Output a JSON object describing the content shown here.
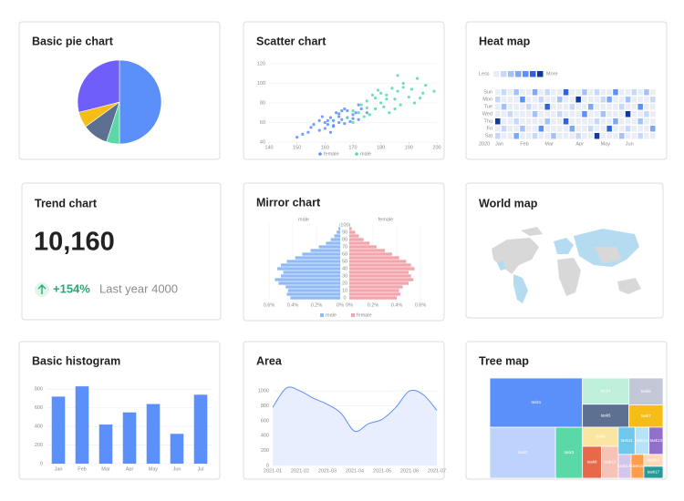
{
  "chart_data": [
    {
      "type": "pie",
      "title": "Basic pie chart",
      "values": [
        50,
        5,
        10,
        6,
        29
      ],
      "colors": [
        "#5b8ff9",
        "#5ad8a6",
        "#5d7092",
        "#f6bd16",
        "#6f5ef9"
      ]
    },
    {
      "type": "scatter",
      "title": "Scatter chart",
      "xlim": [
        140,
        200
      ],
      "xticks": [
        140,
        150,
        160,
        170,
        180,
        190,
        200
      ],
      "ylim": [
        40,
        120
      ],
      "yticks": [
        40,
        60,
        80,
        100,
        120
      ],
      "grid": true,
      "series": [
        {
          "name": "female",
          "color": "#5b8ff9",
          "x": [
            152,
            155,
            158,
            160,
            161,
            162,
            163,
            163,
            164,
            165,
            165,
            166,
            167,
            168,
            168,
            170,
            171,
            172,
            173,
            158,
            156,
            160,
            162,
            165,
            167,
            169,
            150,
            154,
            159,
            163,
            166,
            170,
            172,
            175,
            161
          ],
          "values": [
            48,
            55,
            52,
            60,
            58,
            65,
            57,
            62,
            70,
            60,
            66,
            63,
            59,
            72,
            65,
            68,
            70,
            63,
            74,
            62,
            58,
            54,
            50,
            69,
            74,
            61,
            45,
            50,
            66,
            56,
            72,
            64,
            78,
            70,
            62
          ]
        },
        {
          "name": "male",
          "color": "#5ad8a6",
          "x": [
            168,
            170,
            172,
            173,
            175,
            175,
            176,
            178,
            178,
            180,
            180,
            181,
            182,
            183,
            184,
            185,
            186,
            187,
            188,
            190,
            191,
            192,
            193,
            195,
            196,
            174,
            177,
            179,
            182,
            185,
            188,
            170,
            186,
            194,
            199
          ],
          "values": [
            65,
            72,
            70,
            78,
            75,
            82,
            68,
            85,
            74,
            80,
            90,
            76,
            88,
            70,
            95,
            84,
            92,
            78,
            100,
            86,
            94,
            80,
            105,
            90,
            98,
            66,
            88,
            93,
            84,
            74,
            96,
            60,
            108,
            85,
            92
          ]
        }
      ]
    },
    {
      "type": "heatmap",
      "title": "Heat map",
      "legend_low": "Less",
      "legend_high": "More",
      "year": "2020",
      "rows": [
        "Sun",
        "Mon",
        "Tue",
        "Wed",
        "Thu",
        "Fri",
        "Sat"
      ],
      "categories": [
        "Jan",
        null,
        null,
        null,
        "Feb",
        null,
        null,
        null,
        "Mar",
        null,
        null,
        null,
        null,
        "Apr",
        null,
        null,
        null,
        "May",
        null,
        null,
        null,
        "Jun",
        null,
        null,
        null,
        null
      ],
      "colors": [
        "#e9edf5",
        "#c6d8fb",
        "#a3c1fa",
        "#7ea7f6",
        "#5b8ff9",
        "#2f63d8",
        "#123a9e"
      ],
      "values": [
        [
          0,
          1,
          0,
          2,
          0,
          0,
          3,
          0,
          1,
          0,
          0,
          5,
          0,
          0,
          2,
          0,
          1,
          0,
          0,
          4,
          0,
          0,
          1,
          0,
          2,
          0
        ],
        [
          1,
          0,
          0,
          0,
          4,
          0,
          0,
          1,
          0,
          0,
          2,
          0,
          0,
          6,
          0,
          0,
          0,
          1,
          3,
          0,
          0,
          2,
          0,
          0,
          0,
          1
        ],
        [
          0,
          2,
          0,
          0,
          0,
          1,
          0,
          0,
          5,
          0,
          0,
          0,
          1,
          0,
          0,
          3,
          0,
          0,
          0,
          0,
          1,
          0,
          0,
          4,
          0,
          0
        ],
        [
          0,
          0,
          1,
          0,
          0,
          0,
          2,
          0,
          0,
          0,
          1,
          0,
          0,
          0,
          4,
          0,
          0,
          2,
          0,
          0,
          0,
          6,
          0,
          0,
          1,
          0
        ],
        [
          6,
          0,
          0,
          1,
          0,
          0,
          0,
          0,
          2,
          0,
          0,
          5,
          0,
          0,
          0,
          0,
          1,
          0,
          0,
          3,
          0,
          0,
          0,
          2,
          0,
          0
        ],
        [
          0,
          1,
          0,
          0,
          2,
          0,
          0,
          4,
          0,
          0,
          0,
          0,
          3,
          0,
          0,
          1,
          0,
          0,
          5,
          0,
          0,
          1,
          0,
          0,
          0,
          3
        ],
        [
          1,
          0,
          0,
          3,
          0,
          0,
          1,
          0,
          0,
          2,
          0,
          0,
          0,
          1,
          0,
          0,
          6,
          0,
          0,
          0,
          2,
          0,
          0,
          1,
          0,
          0
        ]
      ]
    },
    {
      "type": "mirror",
      "title": "Mirror chart",
      "categories": [
        "0",
        null,
        "10",
        null,
        "20",
        null,
        "30",
        null,
        "40",
        null,
        "50",
        null,
        "60",
        null,
        "70",
        null,
        "80",
        null,
        "90",
        null,
        "100"
      ],
      "xlim": [
        0,
        0.6
      ],
      "xticks": [
        {
          "value": 0,
          "label": "0%"
        },
        {
          "value": 0.2,
          "label": "0.2%"
        },
        {
          "value": 0.4,
          "label": "0.4%"
        },
        {
          "value": 0.6,
          "label": "0.6%"
        }
      ],
      "series": [
        {
          "name": "male",
          "color": "#91bbf8",
          "values": [
            0.42,
            0.45,
            0.44,
            0.46,
            0.52,
            0.55,
            0.5,
            0.48,
            0.53,
            0.5,
            0.45,
            0.38,
            0.32,
            0.25,
            0.18,
            0.12,
            0.08,
            0.05,
            0.03,
            0.015,
            0.005
          ]
        },
        {
          "name": "female",
          "color": "#f5a3ad",
          "values": [
            0.4,
            0.43,
            0.42,
            0.45,
            0.5,
            0.54,
            0.52,
            0.5,
            0.55,
            0.52,
            0.48,
            0.42,
            0.36,
            0.3,
            0.23,
            0.17,
            0.12,
            0.08,
            0.05,
            0.02,
            0.008
          ]
        }
      ]
    },
    {
      "type": "bar",
      "title": "Basic histogram",
      "categories": [
        "Jan",
        "Feb",
        "Mar",
        "Apr",
        "May",
        "Jun",
        "Jul"
      ],
      "values": [
        720,
        830,
        420,
        550,
        640,
        320,
        740
      ],
      "color": "#5b8ff9",
      "ylim": [
        0,
        880
      ],
      "yticks": [
        0,
        200,
        400,
        600,
        800
      ],
      "grid": true
    },
    {
      "type": "area",
      "title": "Area",
      "categories": [
        "2021-01",
        null,
        "2021-02",
        null,
        "2021-03",
        null,
        "2021-04",
        null,
        "2021-05",
        null,
        "2021-06",
        null,
        "2021-07"
      ],
      "values": [
        780,
        1040,
        1000,
        900,
        820,
        700,
        460,
        560,
        620,
        780,
        1000,
        950,
        740
      ],
      "color": "#5b8ff9",
      "fill": "#e8eefd",
      "ylim": [
        0,
        1100
      ],
      "yticks": [
        0,
        200,
        400,
        600,
        800,
        1000
      ],
      "grid": true
    },
    {
      "type": "treemap",
      "title": "Tree map",
      "categories": [
        "task1",
        "task2",
        "task3",
        "task4",
        "task5",
        "task6",
        "task7",
        "task8",
        "task9",
        "task10",
        "task11",
        "task12",
        "task13",
        "task14",
        "task15",
        "task16",
        "task17"
      ],
      "values": [
        30,
        22,
        9,
        8,
        7,
        6,
        5,
        4.5,
        4,
        3.5,
        3,
        2.5,
        2.5,
        2,
        2,
        1.5,
        1.5
      ],
      "colors": [
        "#5b8ff9",
        "#bdd2fd",
        "#5ad8a6",
        "#bdefdb",
        "#5d7092",
        "#c2c8d5",
        "#f6bd16",
        "#fbe5a2",
        "#e8684a",
        "#f6c3b7",
        "#6dc8ec",
        "#b6e3f5",
        "#9270ca",
        "#d3c6ea",
        "#ff9d4d",
        "#ffd8b8",
        "#269a99"
      ]
    }
  ],
  "trend": {
    "title": "Trend chart",
    "value": "10,160",
    "change": "+154%",
    "comparison": "Last year 4000"
  },
  "world_map": {
    "title": "World map"
  }
}
